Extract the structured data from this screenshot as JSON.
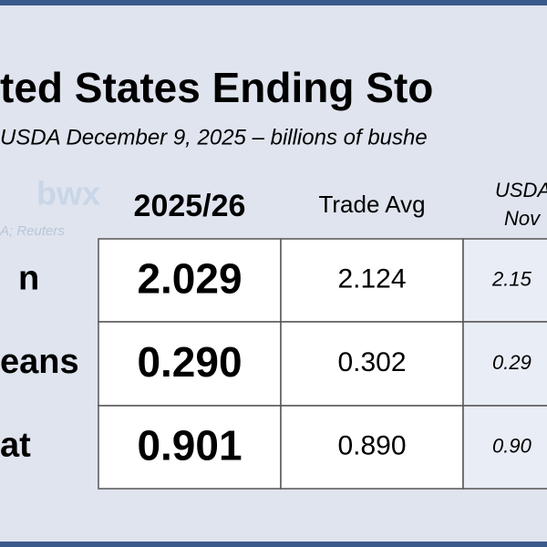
{
  "header": {
    "title": "ted States Ending Sto",
    "subtitle": "USDA December 9, 2025 – billions of bushe"
  },
  "logo": {
    "text": "bwx",
    "source": "A; Reuters"
  },
  "table": {
    "columns": [
      "2025/26",
      "Trade Avg",
      "USDA",
      "Nov"
    ],
    "rows": [
      [
        "n",
        "2.029",
        "2.124",
        "2.15"
      ],
      [
        "eans",
        "0.290",
        "0.302",
        "0.29"
      ],
      [
        "at",
        "0.901",
        "0.890",
        "0.90"
      ]
    ]
  }
}
